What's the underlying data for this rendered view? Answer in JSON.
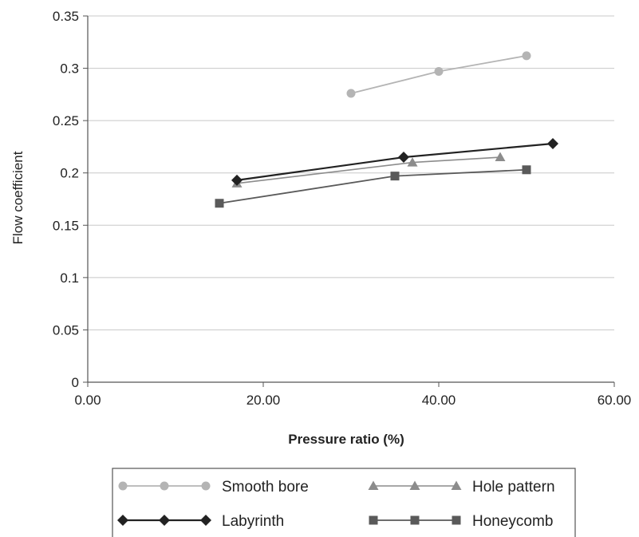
{
  "chart_data": {
    "type": "line",
    "xlabel": "Pressure ratio (%)",
    "ylabel": "Flow coefficient",
    "xlim": [
      0,
      60
    ],
    "ylim": [
      0,
      0.35
    ],
    "xticks": [
      "0.00",
      "20.00",
      "40.00",
      "60.00"
    ],
    "yticks": [
      "0",
      "0.05",
      "0.1",
      "0.15",
      "0.2",
      "0.25",
      "0.3",
      "0.35"
    ],
    "grid": "horizontal",
    "legend_position": "bottom",
    "series": [
      {
        "name": "Smooth bore",
        "marker": "circle",
        "color": "#b4b4b4",
        "points": [
          [
            30,
            0.276
          ],
          [
            40,
            0.297
          ],
          [
            50,
            0.312
          ]
        ]
      },
      {
        "name": "Hole pattern",
        "marker": "triangle",
        "color": "#8c8c8c",
        "points": [
          [
            17,
            0.19
          ],
          [
            37,
            0.21
          ],
          [
            47,
            0.215
          ]
        ]
      },
      {
        "name": "Labyrinth",
        "marker": "diamond",
        "color": "#222222",
        "points": [
          [
            17,
            0.193
          ],
          [
            36,
            0.215
          ],
          [
            53,
            0.228
          ]
        ]
      },
      {
        "name": "Honeycomb",
        "marker": "square",
        "color": "#5a5a5a",
        "points": [
          [
            15,
            0.171
          ],
          [
            35,
            0.197
          ],
          [
            50,
            0.203
          ]
        ]
      }
    ]
  }
}
